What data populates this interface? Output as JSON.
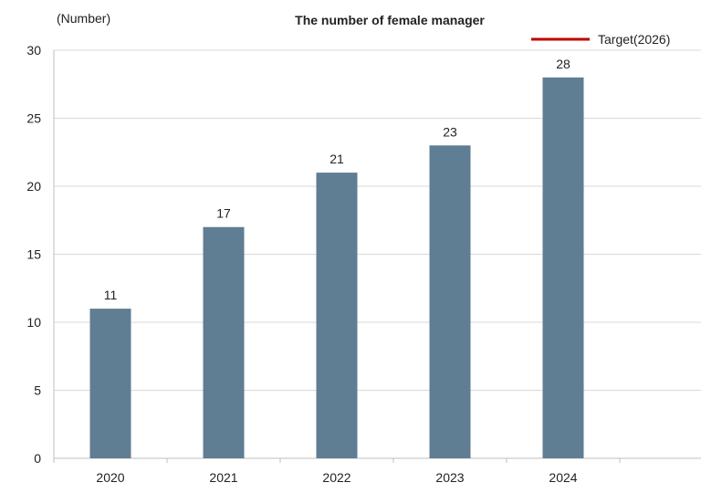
{
  "chart_data": {
    "type": "bar",
    "title": "The number of female manager",
    "ylabel": "(Number)",
    "xlabel": "",
    "categories": [
      "2020",
      "2021",
      "2022",
      "2023",
      "2024"
    ],
    "series": [
      {
        "values": [
          11,
          17,
          21,
          23,
          28
        ]
      }
    ],
    "ylim": [
      0,
      30
    ],
    "yticks": [
      0,
      5,
      10,
      15,
      20,
      25,
      30
    ],
    "grid": true,
    "legend": {
      "position": "top-right",
      "entries": [
        {
          "label": "Target(2026)",
          "color": "#c00000",
          "marker": "line"
        }
      ]
    },
    "colors": {
      "bar": "#5f7d93",
      "grid": "#d9d9d9",
      "axis": "#bfbfbf"
    },
    "data_labels": true
  }
}
